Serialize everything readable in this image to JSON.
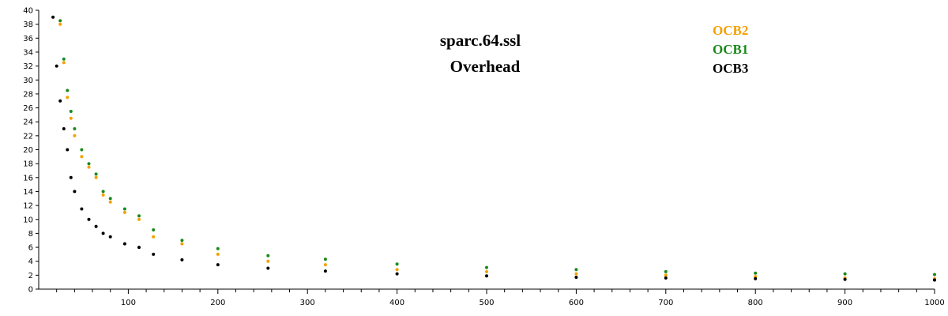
{
  "chart_data": {
    "type": "scatter",
    "title": "sparc.64.ssl",
    "subtitle": "Overhead",
    "xlabel": "",
    "ylabel": "",
    "xlim": [
      0,
      1000
    ],
    "ylim": [
      0,
      40
    ],
    "x_ticks": [
      100,
      200,
      300,
      400,
      500,
      600,
      700,
      800,
      900,
      1000
    ],
    "y_ticks": [
      0,
      2,
      4,
      6,
      8,
      10,
      12,
      14,
      16,
      18,
      20,
      22,
      24,
      26,
      28,
      30,
      32,
      34,
      36,
      38,
      40
    ],
    "grid": false,
    "legend_placement": "top-right",
    "series": [
      {
        "name": "OCB2",
        "color": "#f5a000",
        "x": [
          24,
          28,
          32,
          36,
          40,
          48,
          56,
          64,
          72,
          80,
          96,
          112,
          128,
          160,
          200,
          256,
          320,
          400,
          500,
          600,
          700,
          800,
          900,
          1000
        ],
        "y": [
          38.0,
          32.5,
          27.5,
          24.5,
          22.0,
          19.0,
          17.5,
          16.0,
          13.5,
          12.5,
          11.0,
          10.0,
          7.5,
          6.5,
          5.0,
          4.0,
          3.5,
          2.8,
          2.5,
          2.2,
          2.0,
          1.8,
          1.6,
          1.5
        ]
      },
      {
        "name": "OCB1",
        "color": "#1a8a1a",
        "x": [
          24,
          28,
          32,
          36,
          40,
          48,
          56,
          64,
          72,
          80,
          96,
          112,
          128,
          160,
          200,
          256,
          320,
          400,
          500,
          600,
          700,
          800,
          900,
          1000
        ],
        "y": [
          38.5,
          33.0,
          28.5,
          25.5,
          23.0,
          20.0,
          18.0,
          16.5,
          14.0,
          13.0,
          11.5,
          10.5,
          8.5,
          7.0,
          5.8,
          4.8,
          4.3,
          3.6,
          3.1,
          2.8,
          2.5,
          2.3,
          2.2,
          2.1
        ]
      },
      {
        "name": "OCB3",
        "color": "#000000",
        "x": [
          16,
          20,
          24,
          28,
          32,
          36,
          40,
          48,
          56,
          64,
          72,
          80,
          96,
          112,
          128,
          160,
          200,
          256,
          320,
          400,
          500,
          600,
          700,
          800,
          900,
          1000
        ],
        "y": [
          39.0,
          32.0,
          27.0,
          23.0,
          20.0,
          16.0,
          14.0,
          11.5,
          10.0,
          9.0,
          8.0,
          7.5,
          6.5,
          6.0,
          5.0,
          4.2,
          3.5,
          3.0,
          2.6,
          2.2,
          1.9,
          1.7,
          1.6,
          1.5,
          1.4,
          1.3
        ]
      }
    ]
  }
}
